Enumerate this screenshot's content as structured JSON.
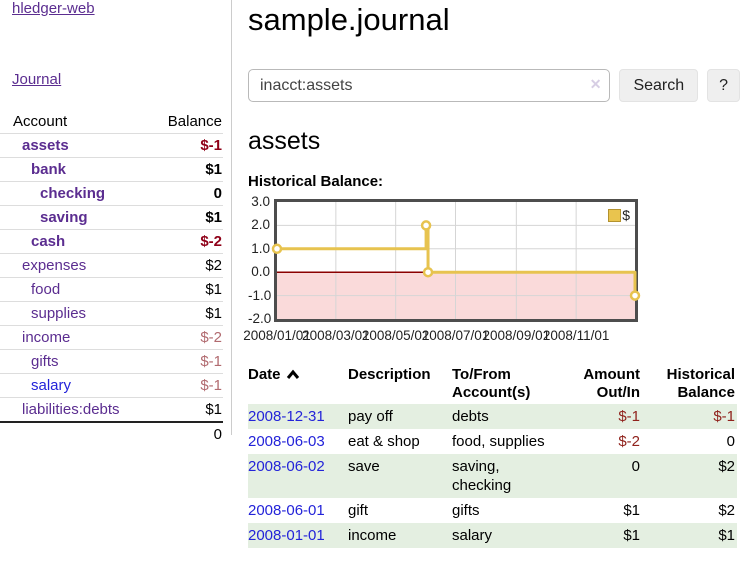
{
  "sidebar": {
    "brand": "hledger-web",
    "nav_journal": "Journal",
    "table": {
      "col_account": "Account",
      "col_balance": "Balance",
      "accounts": [
        {
          "name": "assets",
          "balance": "$-1"
        },
        {
          "name": "bank",
          "balance": "$1"
        },
        {
          "name": "checking",
          "balance": "0"
        },
        {
          "name": "saving",
          "balance": "$1"
        },
        {
          "name": "cash",
          "balance": "$-2"
        },
        {
          "name": "expenses",
          "balance": "$2"
        },
        {
          "name": "food",
          "balance": "$1"
        },
        {
          "name": "supplies",
          "balance": "$1"
        },
        {
          "name": "income",
          "balance": "$-2"
        },
        {
          "name": "gifts",
          "balance": "$-1"
        },
        {
          "name": "salary",
          "balance": "$-1"
        },
        {
          "name": "liabilities:debts",
          "balance": "$1"
        }
      ],
      "total": "0"
    }
  },
  "main": {
    "title": "sample.journal",
    "search": {
      "value": "inacct:assets",
      "clear_icon": "✕",
      "button": "Search",
      "help_button": "?"
    },
    "account_heading": "assets",
    "chart_label": "Historical Balance:",
    "register": {
      "headers": {
        "date": "Date",
        "description": "Description",
        "accounts": "To/From Account(s)",
        "amount": "Amount Out/In",
        "balance": "Historical Balance"
      },
      "rows": [
        {
          "date": "2008-12-31",
          "description": "pay off",
          "accounts": "debts",
          "amount": "$-1",
          "balance": "$-1"
        },
        {
          "date": "2008-06-03",
          "description": "eat & shop",
          "accounts": "food, supplies",
          "amount": "$-2",
          "balance": "0"
        },
        {
          "date": "2008-06-02",
          "description": "save",
          "accounts": "saving, checking",
          "amount": "0",
          "balance": "$2"
        },
        {
          "date": "2008-06-01",
          "description": "gift",
          "accounts": "gifts",
          "amount": "$1",
          "balance": "$2"
        },
        {
          "date": "2008-01-01",
          "description": "income",
          "accounts": "salary",
          "amount": "$1",
          "balance": "$1"
        }
      ]
    }
  },
  "chart_data": {
    "type": "line",
    "step": true,
    "title": "Historical Balance:",
    "legend": "$",
    "legend_position": "top-right",
    "x": [
      "2008-01-01",
      "2008-06-01",
      "2008-06-03",
      "2008-12-31"
    ],
    "y": [
      1,
      2,
      0,
      -1
    ],
    "xlim": [
      "2008-01-01",
      "2008-12-31"
    ],
    "ylim": [
      -2,
      3
    ],
    "yticks": [
      3,
      2,
      1,
      0,
      -1,
      -2
    ],
    "ytick_labels": [
      "3.0",
      "2.0",
      "1.0",
      "0.0",
      "-1.0",
      "-2.0"
    ],
    "xticks": [
      "2008-01-01",
      "2008-03-01",
      "2008-05-01",
      "2008-07-01",
      "2008-09-01",
      "2008-11-01"
    ],
    "xtick_labels": [
      "2008/01/01",
      "2008/03/01",
      "2008/05/01",
      "2008/07/01",
      "2008/09/01",
      "2008/11/01"
    ],
    "grid": true
  },
  "colors": {
    "accent_purple": "#5b2d90",
    "link_blue": "#2323d9",
    "negative_strong": "#8f0018",
    "negative_muted": "#b16a6f",
    "table_negative": "#90221c",
    "row_stripe_green": "#e4efe1",
    "chart_line_gold": "#e7c34f",
    "negative_region_pink": "#fadada",
    "zero_line_dark_red": "#8b0000",
    "grid_gray": "#d5d5d5",
    "plot_border": "#4d4d4d"
  }
}
